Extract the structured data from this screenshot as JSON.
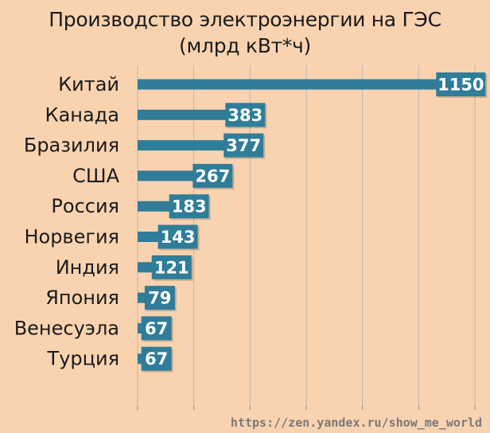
{
  "chart_data": {
    "type": "bar",
    "orientation": "horizontal",
    "title": "Производство электроэнергии на ГЭС",
    "subtitle": "(млрд кВт*ч)",
    "categories": [
      "Китай",
      "Канада",
      "Бразилия",
      "США",
      "Россия",
      "Норвегия",
      "Индия",
      "Япония",
      "Венесуэла",
      "Турция"
    ],
    "values": [
      1150,
      383,
      377,
      267,
      183,
      143,
      121,
      79,
      67,
      67
    ],
    "xlim": [
      0,
      1200
    ],
    "grid": true,
    "legend": "none",
    "colors": {
      "bar": "#2f7d99",
      "label_box": "#2f7d99",
      "background": "#f9d3b0",
      "grid": "#b5b5b5"
    }
  },
  "source": "https://zen.yandex.ru/show_me_world"
}
